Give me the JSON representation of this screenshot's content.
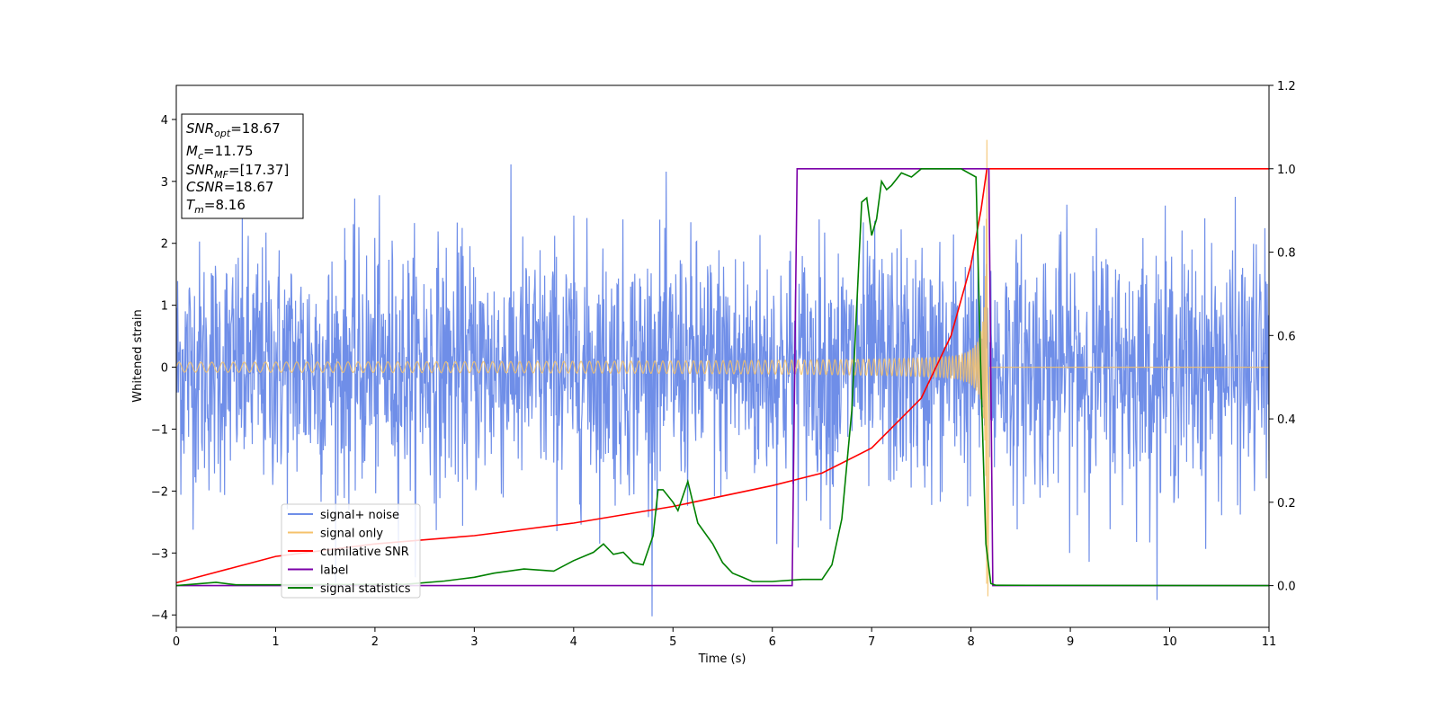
{
  "chart_data": {
    "type": "line",
    "xlabel": "Time (s)",
    "ylabel": "Whitened strain",
    "xlim": [
      0,
      11
    ],
    "ylim_left": [
      -4.2,
      4.55
    ],
    "ylim_right": [
      -0.1,
      1.2
    ],
    "x_ticks": [
      "0",
      "1",
      "2",
      "3",
      "4",
      "5",
      "6",
      "7",
      "8",
      "9",
      "10",
      "11"
    ],
    "y_ticks_left": [
      "−4",
      "−3",
      "−2",
      "−1",
      "0",
      "1",
      "2",
      "3",
      "4"
    ],
    "y_ticks_right": [
      "0.0",
      "0.2",
      "0.4",
      "0.6",
      "0.8",
      "1.0",
      "1.2"
    ],
    "grid": false,
    "legend_position": "lower-left",
    "annotation": {
      "lines": [
        {
          "main": "SNR",
          "sub": "opt",
          "rest": "=18.67"
        },
        {
          "main": "M",
          "sub": "c",
          "rest": "=11.75"
        },
        {
          "main": "SNR",
          "sub": "MF",
          "rest": "=[17.37]"
        },
        {
          "main": "CSNR",
          "sub": "",
          "rest": "=18.67"
        },
        {
          "main": "T",
          "sub": "m",
          "rest": "=8.16"
        }
      ]
    },
    "series": [
      {
        "name": "signal+ noise",
        "color": "#6f8ee8",
        "axis": "left",
        "description_values": "random noise, amplitude roughly ±2.5 with peaks up to 4.2",
        "noise_std": 1.0,
        "x_range": [
          0,
          11
        ]
      },
      {
        "name": "signal only",
        "color": "#f5c26b",
        "axis": "left",
        "chirp_end_time": 8.16,
        "peak_amplitude": 3.7,
        "x_range": [
          0,
          11
        ]
      },
      {
        "name": "cumilative SNR",
        "color": "#ff0000",
        "axis": "right",
        "x": [
          0,
          1,
          2,
          3,
          4,
          5,
          6,
          6.5,
          7,
          7.5,
          7.8,
          8.0,
          8.1,
          8.16,
          8.2,
          11
        ],
        "y": [
          0.007,
          0.07,
          0.1,
          0.12,
          0.15,
          0.19,
          0.24,
          0.27,
          0.33,
          0.45,
          0.6,
          0.77,
          0.9,
          1.0,
          1.0,
          1.0
        ]
      },
      {
        "name": "label",
        "color": "#7b00a8",
        "axis": "right",
        "x": [
          0,
          6.2,
          6.25,
          8.18,
          8.22,
          11
        ],
        "y": [
          0,
          0,
          1,
          1,
          0,
          0
        ]
      },
      {
        "name": "signal statistics",
        "color": "#008000",
        "axis": "right",
        "x": [
          0,
          0.4,
          0.6,
          1,
          2,
          2.3,
          2.7,
          3.0,
          3.2,
          3.5,
          3.8,
          4.0,
          4.2,
          4.3,
          4.4,
          4.5,
          4.6,
          4.7,
          4.8,
          4.85,
          4.9,
          5.0,
          5.05,
          5.15,
          5.25,
          5.4,
          5.5,
          5.6,
          5.7,
          5.8,
          6.0,
          6.3,
          6.5,
          6.6,
          6.7,
          6.8,
          6.9,
          6.95,
          7.0,
          7.05,
          7.1,
          7.15,
          7.2,
          7.3,
          7.4,
          7.5,
          7.7,
          7.9,
          8.05,
          8.1,
          8.15,
          8.2,
          8.25,
          11
        ],
        "y": [
          0,
          0.008,
          0.002,
          0.002,
          0.003,
          0.003,
          0.011,
          0.02,
          0.03,
          0.04,
          0.035,
          0.06,
          0.08,
          0.1,
          0.075,
          0.08,
          0.055,
          0.05,
          0.12,
          0.23,
          0.23,
          0.2,
          0.18,
          0.25,
          0.15,
          0.1,
          0.055,
          0.03,
          0.02,
          0.01,
          0.01,
          0.015,
          0.015,
          0.05,
          0.16,
          0.42,
          0.92,
          0.93,
          0.84,
          0.88,
          0.97,
          0.95,
          0.96,
          0.99,
          0.98,
          1.0,
          1.0,
          1.0,
          0.98,
          0.5,
          0.1,
          0.005,
          0.001,
          0.0
        ]
      }
    ]
  }
}
